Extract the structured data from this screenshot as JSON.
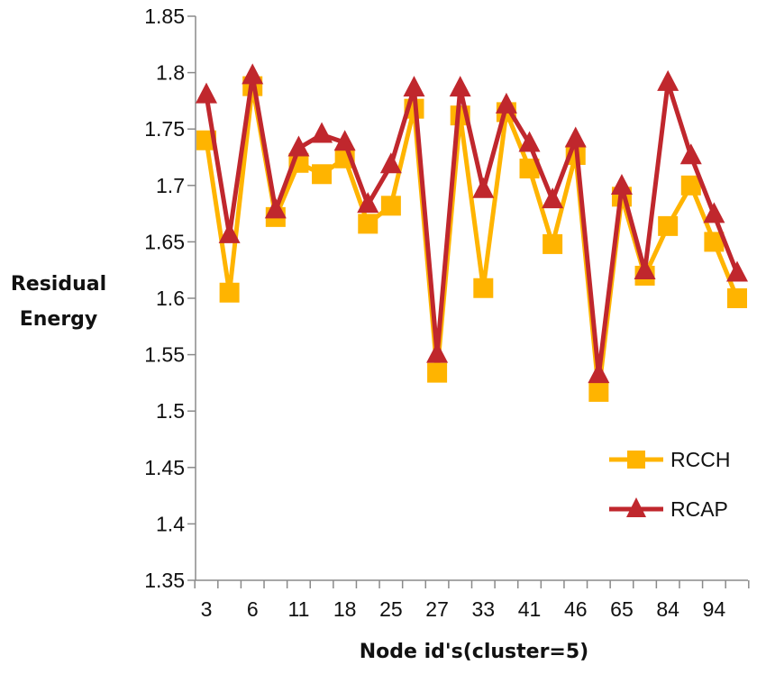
{
  "chart_data": {
    "type": "line",
    "xlabel": "Node id's(cluster=5)",
    "ylabel_lines": [
      "Residual",
      "Energy"
    ],
    "ylim": [
      1.35,
      1.85
    ],
    "yticks": [
      "1.35",
      "1.4",
      "1.45",
      "1.5",
      "1.55",
      "1.6",
      "1.65",
      "1.7",
      "1.75",
      "1.8",
      "1.85"
    ],
    "categories": [
      "3",
      "",
      "6",
      "",
      "11",
      "",
      "18",
      "",
      "25",
      "",
      "27",
      "",
      "33",
      "",
      "41",
      "",
      "46",
      "",
      "65",
      "",
      "84",
      "",
      "94",
      ""
    ],
    "grid": false,
    "legend_position": "bottom-right",
    "series": [
      {
        "name": "RCCH",
        "color": "#FFB400",
        "marker": "square",
        "values": [
          1.74,
          1.605,
          1.788,
          1.672,
          1.72,
          1.71,
          1.724,
          1.666,
          1.682,
          1.768,
          1.534,
          1.762,
          1.609,
          1.765,
          1.715,
          1.648,
          1.727,
          1.517,
          1.69,
          1.62,
          1.664,
          1.7,
          1.65,
          1.6
        ]
      },
      {
        "name": "RCAP",
        "color": "#C0272D",
        "marker": "triangle",
        "values": [
          1.78,
          1.656,
          1.797,
          1.678,
          1.733,
          1.745,
          1.738,
          1.683,
          1.718,
          1.786,
          1.55,
          1.786,
          1.696,
          1.771,
          1.737,
          1.687,
          1.741,
          1.532,
          1.699,
          1.624,
          1.791,
          1.726,
          1.674,
          1.622
        ]
      }
    ]
  }
}
